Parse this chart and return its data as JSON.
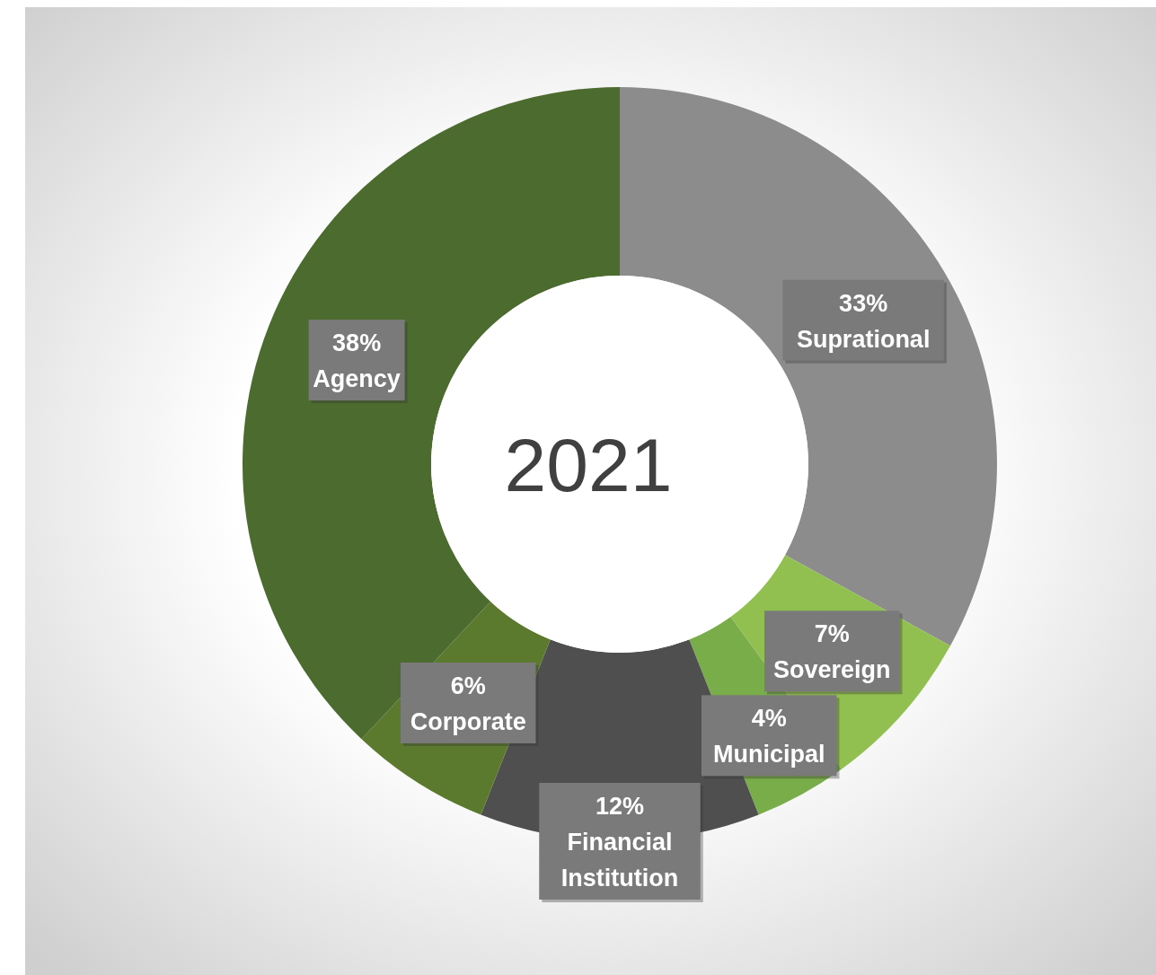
{
  "chart_data": {
    "type": "donut",
    "title": "2021",
    "categories": [
      "Suprational",
      "Sovereign",
      "Municipal",
      "Financial Institution",
      "Corporate",
      "Agency"
    ],
    "values": [
      33,
      7,
      4,
      12,
      6,
      38
    ],
    "value_labels": [
      "33%",
      "7%",
      "4%",
      "12%",
      "6%",
      "38%"
    ],
    "colors": [
      "#8c8c8c",
      "#92c050",
      "#79ad4a",
      "#4f4f4f",
      "#5b7a2e",
      "#4c6b2f"
    ]
  }
}
